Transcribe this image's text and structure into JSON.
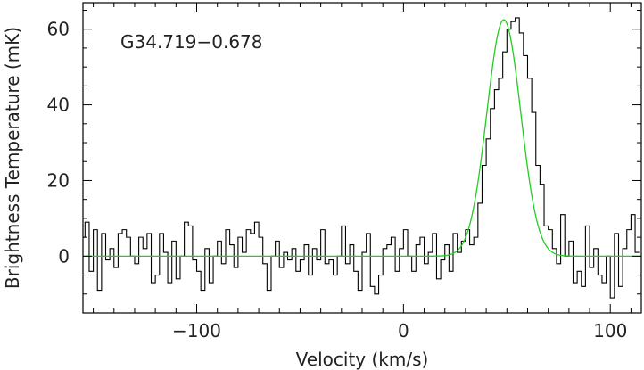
{
  "chart_data": {
    "type": "line",
    "title": "",
    "annotation": "G34.719−0.678",
    "xlabel": "Velocity (km/s)",
    "ylabel": "Brightness Temperature (mK)",
    "xlim": [
      -155,
      115
    ],
    "ylim": [
      -15,
      67
    ],
    "xticks": [
      -100,
      0,
      100
    ],
    "xtick_labels": [
      "−100",
      "0",
      "100"
    ],
    "yticks": [
      0,
      20,
      40,
      60
    ],
    "ytick_labels": [
      "0",
      "20",
      "40",
      "60"
    ],
    "grid": false,
    "series": [
      {
        "style": "step",
        "color": "#000000",
        "x": [
          -155,
          -153,
          -151,
          -149,
          -147,
          -145,
          -143,
          -141,
          -139,
          -137,
          -135,
          -133,
          -131,
          -129,
          -127,
          -125,
          -123,
          -121,
          -119,
          -117,
          -115,
          -113,
          -111,
          -109,
          -107,
          -105,
          -103,
          -101,
          -99,
          -97,
          -95,
          -93,
          -91,
          -89,
          -87,
          -85,
          -83,
          -81,
          -79,
          -77,
          -75,
          -73,
          -71,
          -69,
          -67,
          -65,
          -63,
          -61,
          -59,
          -57,
          -55,
          -53,
          -51,
          -49,
          -47,
          -45,
          -43,
          -41,
          -39,
          -37,
          -35,
          -33,
          -31,
          -29,
          -27,
          -25,
          -23,
          -21,
          -19,
          -17,
          -15,
          -13,
          -11,
          -9,
          -7,
          -5,
          -3,
          -1,
          1,
          3,
          5,
          7,
          9,
          11,
          13,
          15,
          17,
          19,
          21,
          23,
          25,
          27,
          29,
          31,
          33,
          35,
          37,
          39,
          41,
          43,
          45,
          47,
          49,
          51,
          53,
          55,
          57,
          59,
          61,
          63,
          65,
          67,
          69,
          71,
          73,
          75,
          77,
          79,
          81,
          83,
          85,
          87,
          89,
          91,
          93,
          95,
          97,
          99,
          101,
          103,
          105,
          107,
          109,
          111,
          113
        ],
        "values": [
          5,
          9,
          -4,
          7,
          -9,
          6,
          -1,
          2,
          -3,
          6,
          7,
          5,
          0,
          -2,
          5,
          2,
          6,
          -7,
          -5,
          6,
          1,
          -7,
          4,
          -6,
          0,
          9,
          8,
          -1,
          -4,
          -9,
          2,
          -7,
          0,
          4,
          -2,
          7,
          3,
          -3,
          5,
          1,
          7,
          6,
          9,
          5,
          -2,
          -9,
          0,
          4,
          -3,
          1,
          -1,
          2,
          -4,
          -1,
          3,
          -5,
          2,
          -1,
          7,
          -2,
          -1,
          -5,
          0,
          8,
          -2,
          3,
          -4,
          -9,
          1,
          6,
          -8,
          -10,
          -5,
          2,
          3,
          5,
          -4,
          2,
          7,
          0,
          -4,
          3,
          5,
          -2,
          1,
          6,
          -6,
          -1,
          3,
          -4,
          6,
          1,
          4,
          7,
          3,
          5,
          14,
          24,
          31,
          39,
          44,
          47,
          54,
          60,
          62,
          63,
          59,
          53,
          47,
          38,
          24,
          19,
          8,
          7,
          2,
          -2,
          11,
          0,
          4,
          -7,
          -4,
          -8,
          8,
          -3,
          2,
          -5,
          -7,
          0,
          -11,
          6,
          -8,
          2,
          7,
          11,
          1
        ],
        "name": ""
      },
      {
        "style": "line",
        "color": "#22cc22",
        "fit": "gaussian",
        "amplitude": 62.5,
        "center": 48.5,
        "sigma": 8.2,
        "baseline": 0,
        "name": ""
      }
    ]
  }
}
